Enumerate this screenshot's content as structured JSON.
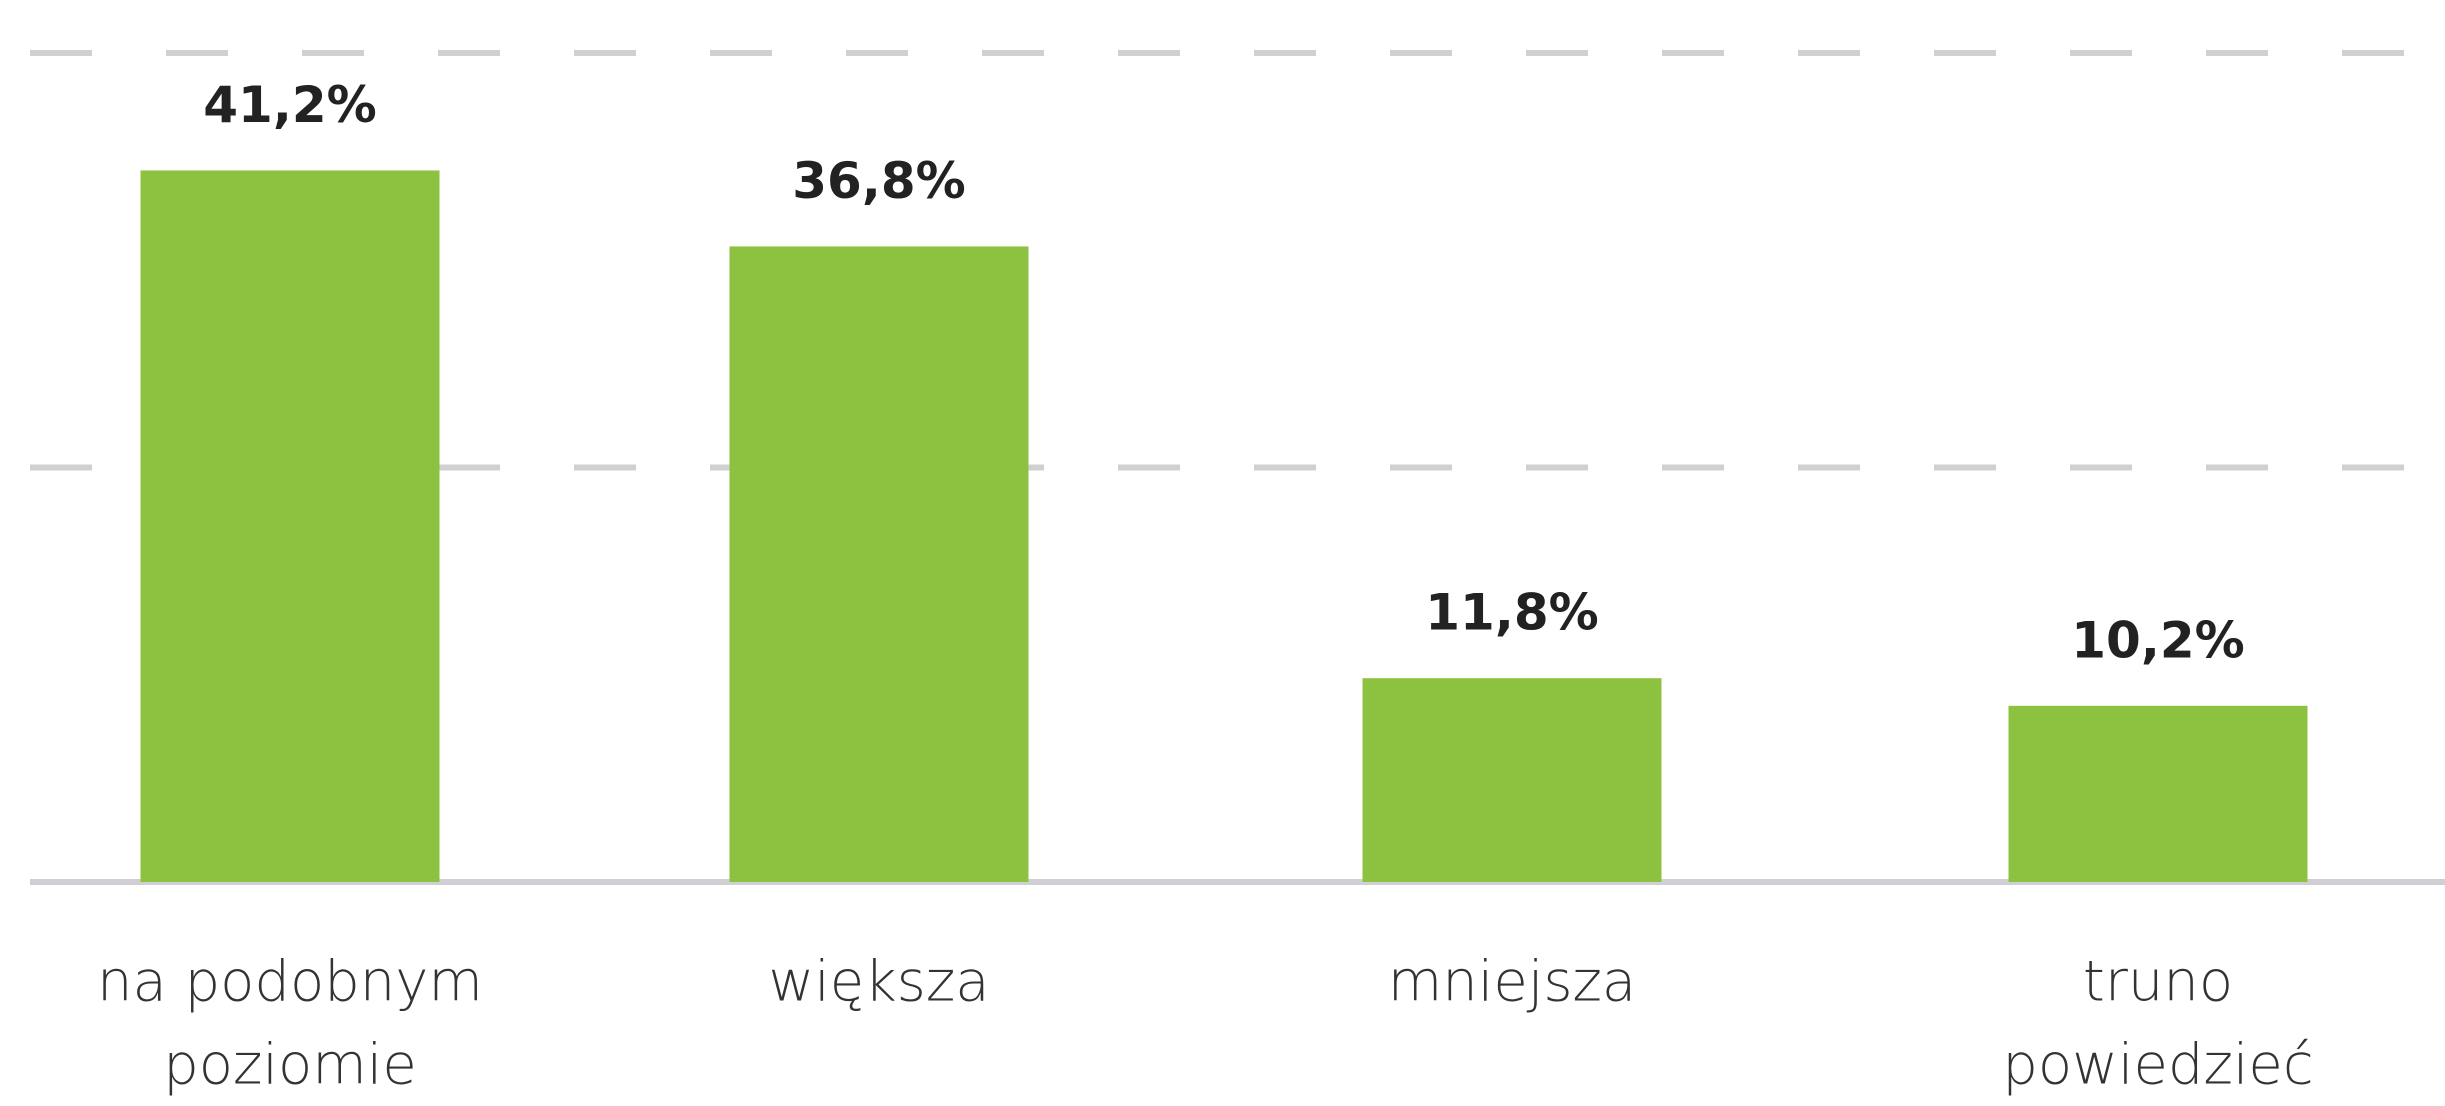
{
  "chart_data": {
    "type": "bar",
    "categories": [
      [
        "na podobnym",
        "poziomie"
      ],
      [
        "większa"
      ],
      [
        "mniejsza"
      ],
      [
        "truno",
        "powiedzieć"
      ]
    ],
    "values": [
      41.2,
      36.8,
      11.8,
      10.2
    ],
    "value_labels": [
      "41,2%",
      "36,8%",
      "11,8%",
      "10,2%"
    ],
    "color": "#8cc23f",
    "ylim": [
      0,
      48
    ],
    "yticks": [
      0,
      24,
      48
    ],
    "grid": true
  }
}
